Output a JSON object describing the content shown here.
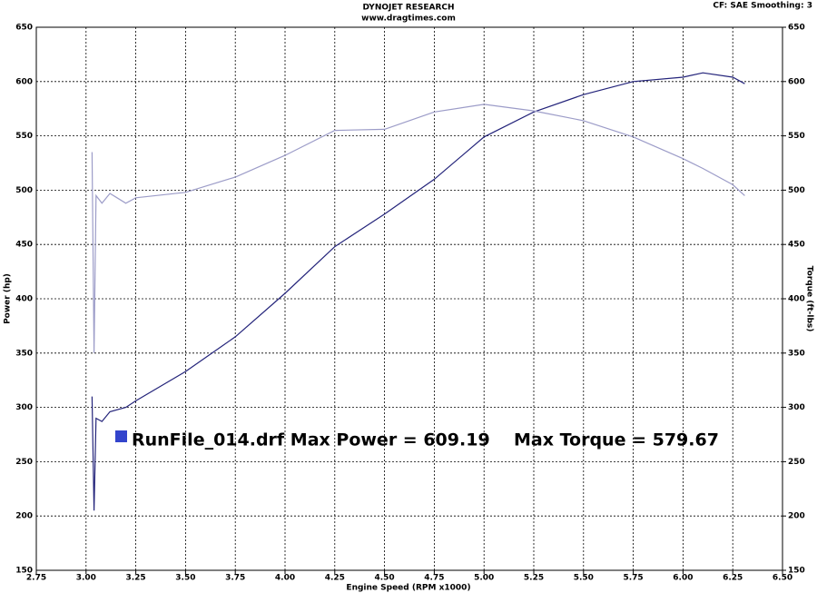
{
  "chart_data": {
    "type": "line",
    "title": "DYNOJET RESEARCH",
    "subtitle": "www.dragtimes.com",
    "corner_note": "CF: SAE  Smoothing: 3",
    "x_label": "Engine Speed (RPM x1000)",
    "y_label": "Power (hp)",
    "y2_label": "Torque (ft-lbs)",
    "annotations": [
      "RunFile_014.drf Max Power = 609.19",
      "Max Torque = 579.67"
    ],
    "legend_color": "#3344cc",
    "grid": true,
    "x": [
      3.03,
      3.04,
      3.05,
      3.08,
      3.12,
      3.2,
      3.25,
      3.5,
      3.75,
      4,
      4.25,
      4.5,
      4.75,
      5,
      5.25,
      5.5,
      5.75,
      6,
      6.1,
      6.25,
      6.31
    ],
    "series": [
      {
        "name": "Power",
        "color": "#23237a",
        "values": [
          310,
          205,
          290,
          287,
          296,
          300,
          306,
          333,
          365,
          405,
          448,
          478,
          510,
          549,
          572,
          588,
          600,
          604,
          608,
          604,
          598
        ]
      },
      {
        "name": "Torque",
        "color": "#9c9cc8",
        "axis": "y2",
        "values": [
          535,
          350,
          495,
          488,
          497,
          488,
          493,
          498,
          512,
          532,
          555,
          556,
          572,
          579,
          573,
          564,
          549,
          529,
          520,
          505,
          495
        ]
      }
    ],
    "xlim": [
      2.75,
      6.5
    ],
    "xticks": [
      {
        "value": 2.75,
        "label": "2.75"
      },
      {
        "value": 3,
        "label": "3.00"
      },
      {
        "value": 3.25,
        "label": "3.25"
      },
      {
        "value": 3.5,
        "label": "3.50"
      },
      {
        "value": 3.75,
        "label": "3.75"
      },
      {
        "value": 4,
        "label": "4.00"
      },
      {
        "value": 4.25,
        "label": "4.25"
      },
      {
        "value": 4.5,
        "label": "4.50"
      },
      {
        "value": 4.75,
        "label": "4.75"
      },
      {
        "value": 5,
        "label": "5.00"
      },
      {
        "value": 5.25,
        "label": "5.25"
      },
      {
        "value": 5.5,
        "label": "5.50"
      },
      {
        "value": 5.75,
        "label": "5.75"
      },
      {
        "value": 6,
        "label": "6.00"
      },
      {
        "value": 6.25,
        "label": "6.25"
      },
      {
        "value": 6.5,
        "label": "6.50"
      }
    ],
    "ylim": [
      150,
      650
    ],
    "yticks": [
      150,
      200,
      250,
      300,
      350,
      400,
      450,
      500,
      550,
      600,
      650
    ],
    "y2lim": [
      150,
      650
    ],
    "y2ticks": [
      150,
      200,
      250,
      300,
      350,
      400,
      450,
      500,
      550,
      600,
      650
    ]
  }
}
